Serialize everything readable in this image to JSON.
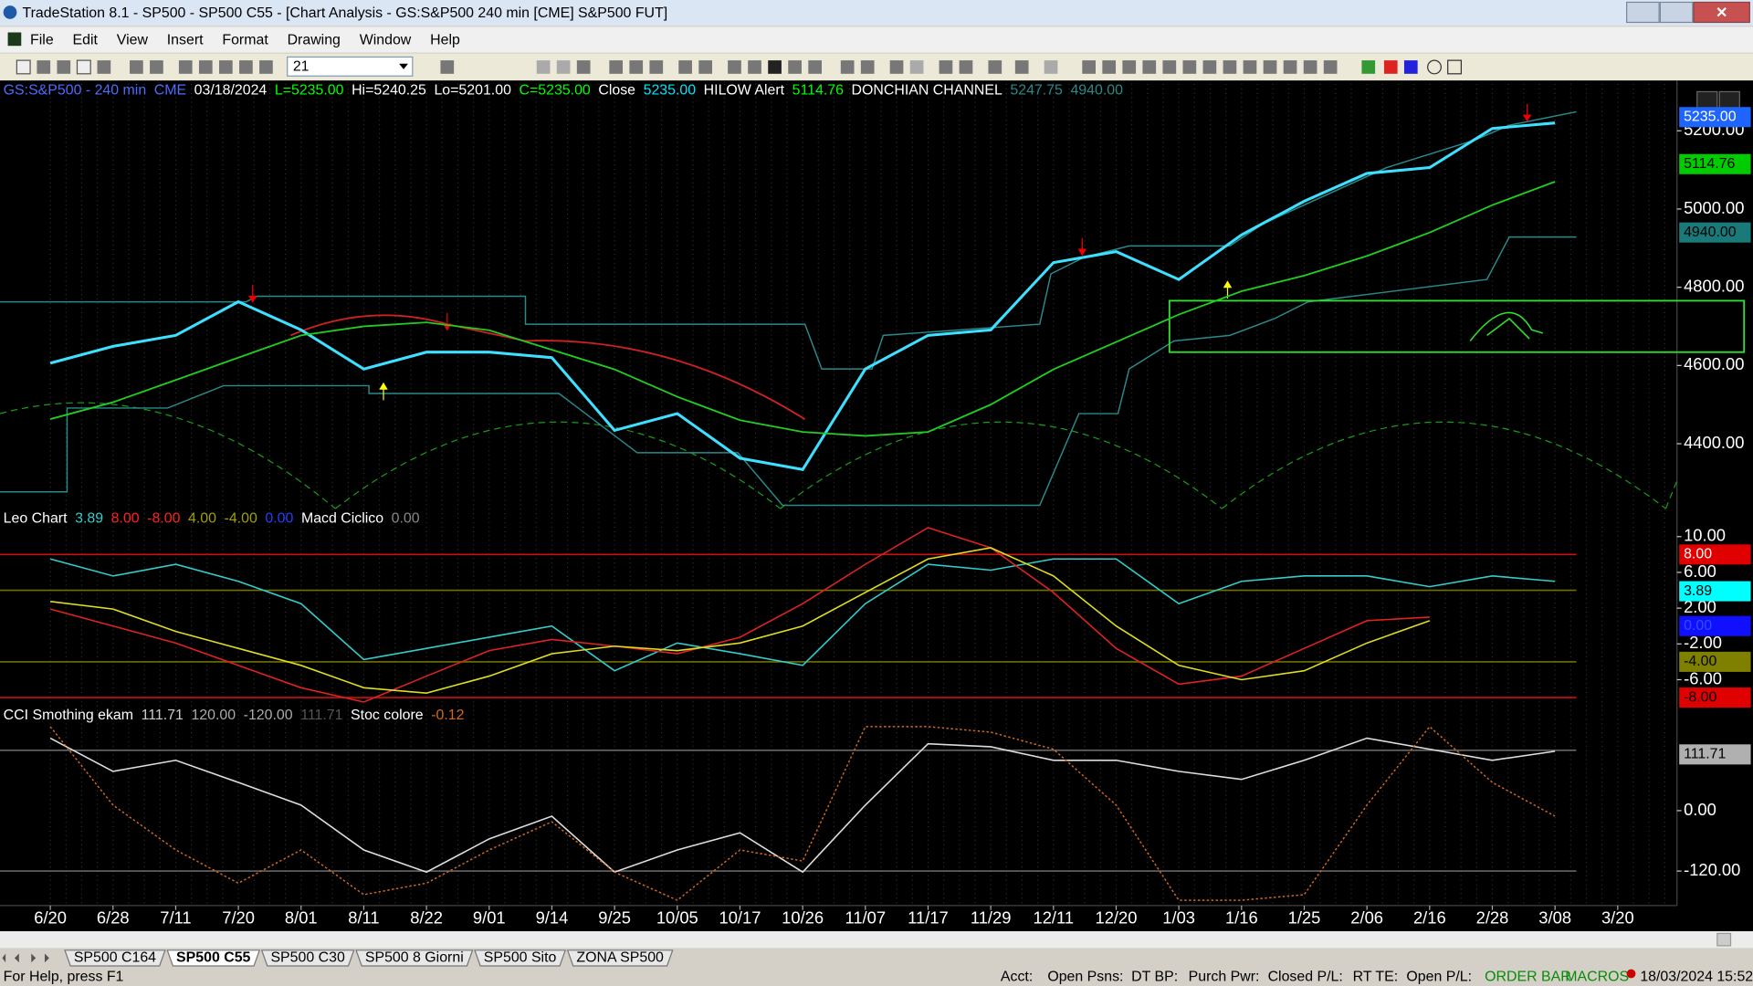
{
  "window": {
    "title": "TradeStation 8.1 - SP500 - SP500 C55 - [Chart Analysis - GS:S&P500  240 min  [CME] S&P500 FUT]",
    "menu": [
      "File",
      "Edit",
      "View",
      "Insert",
      "Format",
      "Drawing",
      "Window",
      "Help"
    ],
    "toolbar_combo": "21",
    "tabs": [
      "SP500 C164",
      "SP500 C55",
      "SP500 C30",
      "SP500 8 Giorni",
      "SP500 Sito",
      "ZONA SP500"
    ],
    "status": {
      "help": "For Help, press F1",
      "fields": [
        "Acct:",
        "Open Psns:",
        "DT BP:",
        "Purch Pwr:",
        "Closed P/L:",
        "RT TE:",
        "Open P/L:"
      ],
      "order_bar": "ORDER BAR",
      "macros": "MACROS",
      "datetime": "18/03/2024 15:52"
    }
  },
  "chart_data": [
    {
      "type": "line",
      "legend": [
        {
          "text": "GS:S&P500 - 240 min",
          "color": "#4d6bff"
        },
        {
          "text": "CME",
          "color": "#4d6bff"
        },
        {
          "text": "03/18/2024",
          "color": "#ffffff"
        },
        {
          "text": "L=5235.00",
          "color": "#00ff00"
        },
        {
          "text": "Hi=5240.25",
          "color": "#ffffff"
        },
        {
          "text": "Lo=5201.00",
          "color": "#ffffff"
        },
        {
          "text": "C=5235.00",
          "color": "#00ff00"
        },
        {
          "text": "Close",
          "color": "#ffffff"
        },
        {
          "text": "5235.00",
          "color": "#00e5ff"
        },
        {
          "text": "HILOW Alert",
          "color": "#ffffff"
        },
        {
          "text": "5114.76",
          "color": "#00ff00"
        },
        {
          "text": "DONCHIAN CHANNEL",
          "color": "#ffffff"
        },
        {
          "text": "5247.75",
          "color": "#2a8a8a"
        },
        {
          "text": "4940.00",
          "color": "#2a8a8a"
        }
      ],
      "ylim": [
        4234,
        5320
      ],
      "yticks": [
        {
          "value": 4400,
          "label": "4400.00"
        },
        {
          "value": 4600,
          "label": "4600.00"
        },
        {
          "value": 4800,
          "label": "4800.00"
        },
        {
          "value": 5000,
          "label": "5000.00"
        },
        {
          "value": 5200,
          "label": "5200.00"
        }
      ],
      "markers": [
        {
          "value": 5235,
          "label": "5235.00",
          "color": "#1e64ff",
          "text_color": "#ffffff"
        },
        {
          "value": 5114.76,
          "label": "5114.76",
          "color": "#00cc00",
          "text_color": "#000000"
        },
        {
          "value": 4940,
          "label": "4940.00",
          "color": "#1a7a7a",
          "text_color": "#000000"
        }
      ],
      "series": [
        {
          "color": "#3fe0ff",
          "width": 2.5,
          "values": [
            4606,
            4649,
            4677,
            4763,
            4691,
            4591,
            4634,
            4634,
            4620,
            4434,
            4477,
            4363,
            4334,
            4591,
            4677,
            4691,
            4863,
            4891,
            4820,
            4934,
            5020,
            5091,
            5106,
            5206,
            5220,
            null
          ]
        },
        {
          "color": "#22cc22",
          "width": 1.5,
          "values": [
            4463,
            4506,
            4563,
            4620,
            4677,
            4700,
            4710,
            4690,
            4640,
            4590,
            4520,
            4460,
            4430,
            4420,
            4430,
            4500,
            4590,
            4660,
            4730,
            4790,
            4830,
            4880,
            4940,
            5010,
            5070,
            null
          ]
        }
      ]
    },
    {
      "type": "line",
      "legend": [
        {
          "text": "Leo Chart",
          "color": "#ffffff"
        },
        {
          "text": "3.89",
          "color": "#33cccc"
        },
        {
          "text": "8.00",
          "color": "#ff2020"
        },
        {
          "text": "-8.00",
          "color": "#ff2020"
        },
        {
          "text": "4.00",
          "color": "#a0a000"
        },
        {
          "text": "-4.00",
          "color": "#a0a000"
        },
        {
          "text": "0.00",
          "color": "#2040ff"
        },
        {
          "text": "Macd Ciclico",
          "color": "#ffffff"
        },
        {
          "text": "0.00",
          "color": "#888888"
        }
      ],
      "ylim": [
        -8.75,
        11.25
      ],
      "yticks": [
        {
          "value": 10,
          "label": "10.00"
        },
        {
          "value": 6,
          "label": "6.00"
        },
        {
          "value": 2,
          "label": "2.00"
        },
        {
          "value": -2,
          "label": "-2.00"
        },
        {
          "value": -6,
          "label": "-6.00"
        }
      ],
      "levels": [
        {
          "value": 8,
          "color": "#cc1010"
        },
        {
          "value": 4,
          "color": "#707000"
        },
        {
          "value": -4,
          "color": "#707000"
        },
        {
          "value": -8,
          "color": "#cc1010"
        }
      ],
      "markers": [
        {
          "value": 8,
          "label": "8.00",
          "color": "#e00000",
          "text_color": "#ffffff"
        },
        {
          "value": 3.89,
          "label": "3.89",
          "color": "#00ffff",
          "text_color": "#000000"
        },
        {
          "value": 0,
          "label": "0.00",
          "color": "#1010ff",
          "text_color": "#3050ff"
        },
        {
          "value": -4,
          "label": "-4.00",
          "color": "#808000",
          "text_color": "#000000"
        },
        {
          "value": -8,
          "label": "-8.00",
          "color": "#e00000",
          "text_color": "#000000"
        }
      ],
      "series": [
        {
          "color": "#33cccc",
          "width": 1.3,
          "values": [
            7.5,
            5.6,
            6.9,
            5,
            2.5,
            -3.75,
            -2.5,
            -1.25,
            0,
            -5,
            -1.9,
            -3.1,
            -4.4,
            2.5,
            6.9,
            6.25,
            7.5,
            7.5,
            2.5,
            5,
            5.6,
            5.6,
            4.4,
            5.6,
            5,
            null
          ]
        },
        {
          "color": "#dd2222",
          "width": 1.3,
          "values": [
            1.9,
            0,
            -1.9,
            -4.4,
            -6.9,
            -8.5,
            -5.6,
            -2.75,
            -1.5,
            -2.25,
            -3.1,
            -1.25,
            2.5,
            6.9,
            11,
            8.75,
            3.75,
            -2.5,
            -6.5,
            -5.6,
            -2.5,
            0.6,
            1,
            null,
            null,
            null
          ]
        },
        {
          "color": "#dddd22",
          "width": 1.3,
          "values": [
            2.75,
            1.9,
            -0.6,
            -2.5,
            -4.4,
            -6.9,
            -7.5,
            -5.6,
            -3.1,
            -2.25,
            -2.75,
            -1.9,
            0,
            3.75,
            7.5,
            8.75,
            5.6,
            0,
            -4.4,
            -6,
            -5,
            -1.9,
            0.6,
            null,
            null,
            null
          ]
        }
      ]
    },
    {
      "type": "line",
      "legend": [
        {
          "text": "CCI Smothing ekam",
          "color": "#ffffff"
        },
        {
          "text": "111.71",
          "color": "#cccccc"
        },
        {
          "text": "120.00",
          "color": "#aaaaaa"
        },
        {
          "text": "-120.00",
          "color": "#aaaaaa"
        },
        {
          "text": "111.71",
          "color": "#555555"
        },
        {
          "text": "Stoc colore",
          "color": "#ffffff"
        },
        {
          "text": "-0.12",
          "color": "#d2691e"
        }
      ],
      "categories": [
        "6/20",
        "6/28",
        "7/11",
        "7/20",
        "8/01",
        "8/11",
        "8/22",
        "9/01",
        "9/14",
        "9/25",
        "10/05",
        "10/17",
        "10/26",
        "11/07",
        "11/17",
        "11/29",
        "12/11",
        "12/20",
        "1/03",
        "1/16",
        "1/25",
        "2/06",
        "2/16",
        "2/28",
        "3/08",
        "3/20"
      ],
      "ylim": [
        -184,
        178
      ],
      "yticks": [
        {
          "value": 0,
          "label": "0.00"
        },
        {
          "value": -120,
          "label": "-120.00"
        }
      ],
      "levels": [
        {
          "value": 120,
          "color": "#666666"
        },
        {
          "value": -120,
          "color": "#666666"
        }
      ],
      "markers": [
        {
          "value": 111.71,
          "label": "111.71",
          "color": "#b0b0b0",
          "text_color": "#000000"
        }
      ],
      "series": [
        {
          "color": "#dddddd",
          "width": 1.3,
          "values": [
            144,
            78,
            100,
            56,
            11,
            -78,
            -122,
            -56,
            -11,
            -122,
            -78,
            -44,
            -122,
            11,
            133,
            127,
            100,
            100,
            78,
            62,
            100,
            144,
            122,
            100,
            118,
            null
          ]
        },
        {
          "color": "#d2691e",
          "width": 1.2,
          "dash": "2,2",
          "values": [
            167,
            11,
            -78,
            -144,
            -78,
            -167,
            -144,
            -78,
            -22,
            -122,
            -178,
            -78,
            -100,
            167,
            167,
            156,
            122,
            11,
            -178,
            -178,
            -167,
            11,
            167,
            56,
            -11,
            null
          ]
        }
      ]
    }
  ]
}
